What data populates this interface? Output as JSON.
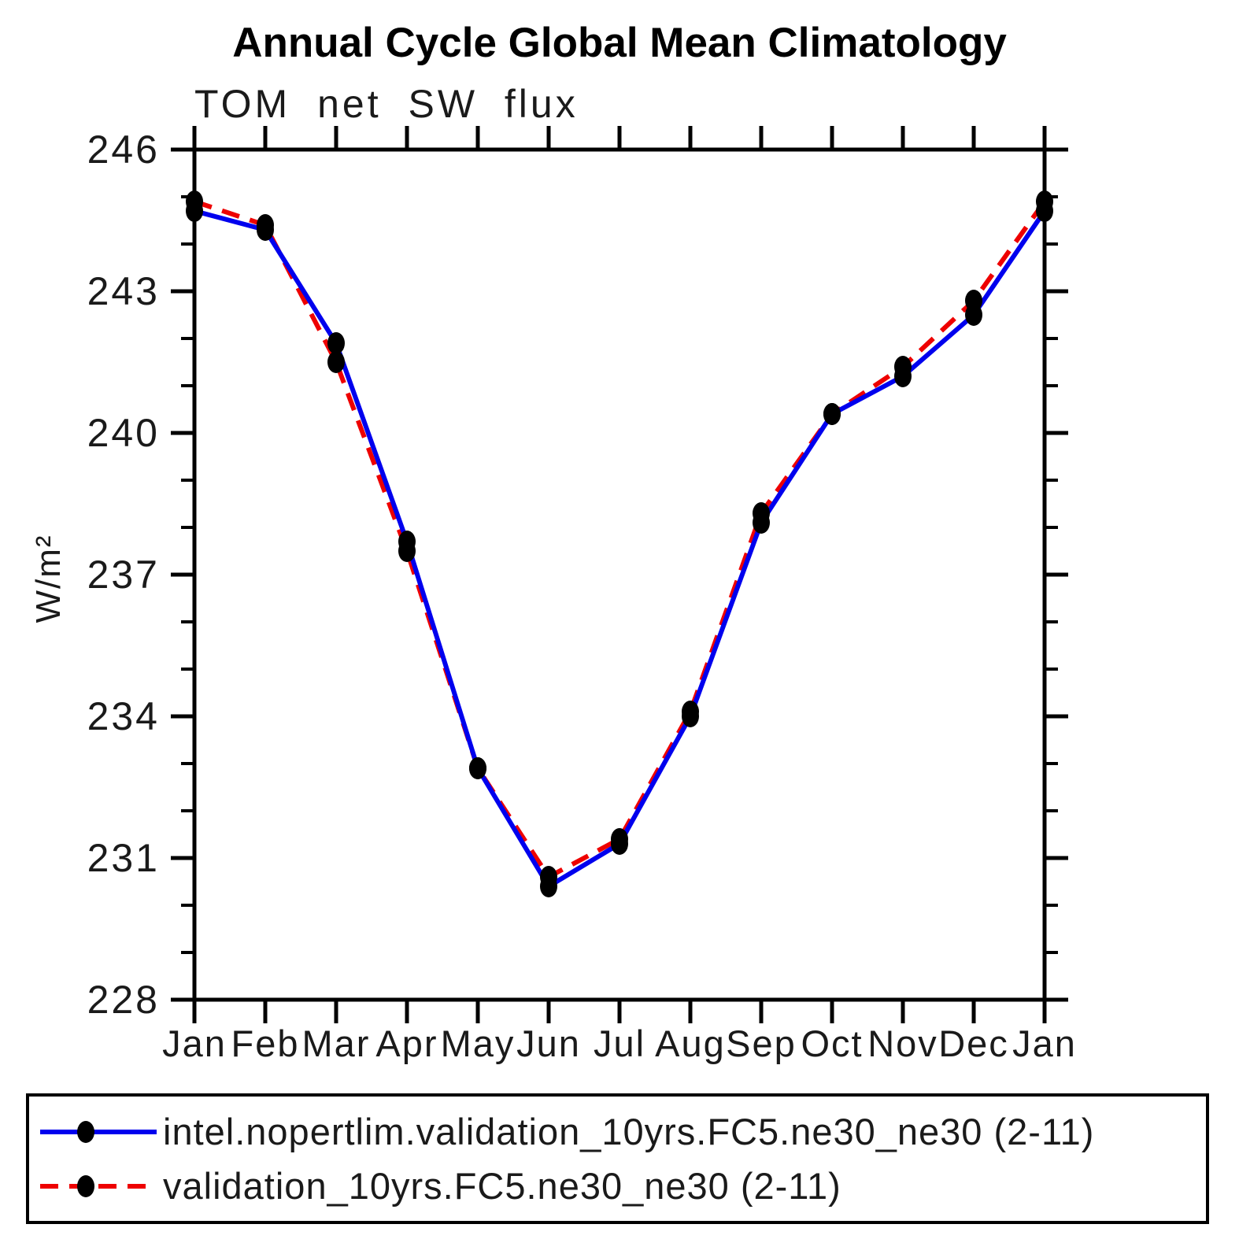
{
  "title": "Annual Cycle Global Mean Climatology",
  "subtitle": "TOM net SW flux",
  "chart_data": {
    "type": "line",
    "title": "Annual Cycle Global Mean Climatology",
    "subtitle": "TOM net SW flux",
    "xlabel": "",
    "ylabel": "W/m²",
    "x_categories": [
      "Jan",
      "Feb",
      "Mar",
      "Apr",
      "May",
      "Jun",
      "Jul",
      "Aug",
      "Sep",
      "Oct",
      "Nov",
      "Dec",
      "Jan"
    ],
    "ylim": [
      228,
      246
    ],
    "ytick_major_step": 3,
    "ytick_minor_step": 1,
    "ytick_major_labels": [
      "228",
      "231",
      "234",
      "237",
      "240",
      "243",
      "246"
    ],
    "grid": false,
    "legend_position": "bottom",
    "marker_color": "#000000",
    "axis_color": "#000000",
    "series": [
      {
        "name": "intel.nopertlim.validation_10yrs.FC5.ne30_ne30 (2-11)",
        "color": "#0000ee",
        "style": "solid",
        "marker": "filled-black-circle",
        "values": [
          244.7,
          244.3,
          241.9,
          237.7,
          232.9,
          230.4,
          231.3,
          234.0,
          238.1,
          240.4,
          241.2,
          242.5,
          244.7
        ]
      },
      {
        "name": "validation_10yrs.FC5.ne30_ne30 (2-11)",
        "color": "#ee0000",
        "style": "dashed",
        "marker": "filled-black-circle",
        "values": [
          244.9,
          244.4,
          241.5,
          237.5,
          232.9,
          230.6,
          231.4,
          234.1,
          238.3,
          240.4,
          241.4,
          242.8,
          244.9
        ]
      }
    ]
  }
}
